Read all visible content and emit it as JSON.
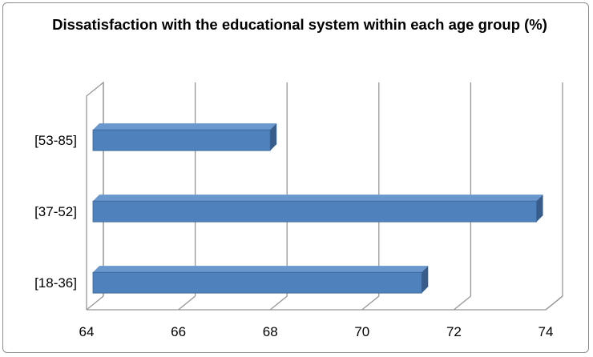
{
  "chart_data": {
    "type": "bar",
    "orientation": "horizontal",
    "three_d": true,
    "title": "Dissatisfaction with the educational system within each age group (%)",
    "xlabel": "",
    "ylabel": "",
    "categories": [
      "[18-36]",
      "[37-52]",
      "[53-85]"
    ],
    "values": [
      71.3,
      73.8,
      68.0
    ],
    "xlim": [
      64,
      74
    ],
    "xticks": [
      "64",
      "66",
      "68",
      "70",
      "72",
      "74"
    ],
    "grid": true,
    "legend": "none",
    "colors": {
      "bar_front": "#4f81bd",
      "bar_top": "#6b97cf",
      "bar_side": "#385d8a",
      "gridline": "#969696"
    }
  }
}
